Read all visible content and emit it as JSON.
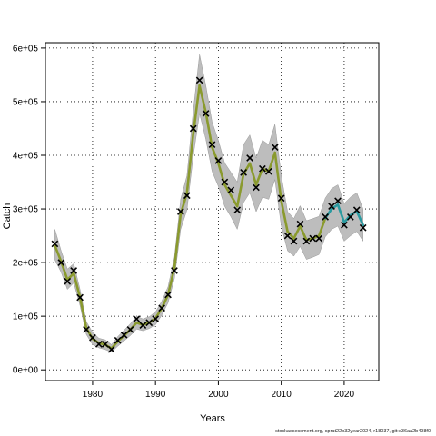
{
  "chart_data": {
    "type": "line",
    "xlabel": "Years",
    "ylabel": "Catch",
    "xlim": [
      1972.5,
      2025.5
    ],
    "ylim": [
      -20000,
      610000
    ],
    "xticks": [
      1980,
      1990,
      2000,
      2010,
      2020
    ],
    "xtick_labels": [
      "1980",
      "1990",
      "2000",
      "2010",
      "2020"
    ],
    "yticks": [
      0,
      100000,
      200000,
      300000,
      400000,
      500000,
      600000
    ],
    "ytick_labels": [
      "0e+00",
      "1e+05",
      "2e+05",
      "3e+05",
      "4e+05",
      "5e+05",
      "6e+05"
    ],
    "grid": true,
    "colors": {
      "band": "#bdbdbd",
      "band_edge": "#999999",
      "line": "#8a9a2e",
      "line_recent": "#2a9aa0",
      "marker": "#000000"
    },
    "x": [
      1974,
      1975,
      1976,
      1977,
      1978,
      1979,
      1980,
      1981,
      1982,
      1983,
      1984,
      1985,
      1986,
      1987,
      1988,
      1989,
      1990,
      1991,
      1992,
      1993,
      1994,
      1995,
      1996,
      1997,
      1998,
      1999,
      2000,
      2001,
      2002,
      2003,
      2004,
      2005,
      2006,
      2007,
      2008,
      2009,
      2010,
      2011,
      2012,
      2013,
      2014,
      2015,
      2016,
      2017,
      2018,
      2019,
      2020,
      2021,
      2022,
      2023
    ],
    "series": [
      {
        "type": "points",
        "marker": "x",
        "values": [
          235000,
          200000,
          165000,
          185000,
          135000,
          75000,
          60000,
          48000,
          48000,
          38000,
          55000,
          65000,
          75000,
          95000,
          83000,
          88000,
          95000,
          115000,
          140000,
          185000,
          295000,
          325000,
          450000,
          540000,
          478000,
          420000,
          390000,
          350000,
          335000,
          298000,
          368000,
          395000,
          340000,
          375000,
          370000,
          415000,
          320000,
          250000,
          240000,
          272000,
          240000,
          245000,
          245000,
          285000,
          305000,
          315000,
          270000,
          285000,
          298000,
          265000
        ]
      },
      {
        "type": "line",
        "values": [
          232000,
          202000,
          168000,
          180000,
          135000,
          78000,
          58000,
          50000,
          47000,
          40000,
          53000,
          64000,
          75000,
          88000,
          84000,
          88000,
          96000,
          115000,
          140000,
          190000,
          290000,
          330000,
          440000,
          530000,
          480000,
          415000,
          385000,
          345000,
          325000,
          305000,
          365000,
          385000,
          345000,
          375000,
          370000,
          405000,
          315000,
          258000,
          245000,
          268000,
          242000,
          245000,
          250000,
          283000,
          300000,
          308000,
          275000,
          288000,
          296000,
          270000
        ]
      },
      {
        "type": "band",
        "name": "",
        "lower": [
          205000,
          182000,
          150000,
          162000,
          120000,
          66000,
          47000,
          41000,
          38000,
          33000,
          44000,
          54000,
          64000,
          76000,
          73000,
          77000,
          84000,
          102000,
          125000,
          170000,
          262000,
          298000,
          398000,
          478000,
          430000,
          370000,
          342000,
          305000,
          285000,
          262000,
          312000,
          330000,
          295000,
          322000,
          318000,
          355000,
          268000,
          222000,
          212000,
          230000,
          206000,
          210000,
          215000,
          248000,
          262000,
          268000,
          240000,
          250000,
          258000,
          240000
        ],
        "upper": [
          262000,
          222000,
          188000,
          198000,
          150000,
          90000,
          70000,
          59000,
          56000,
          47000,
          62000,
          74000,
          86000,
          100000,
          95000,
          99000,
          108000,
          128000,
          155000,
          210000,
          318000,
          362000,
          482000,
          588000,
          530000,
          462000,
          428000,
          386000,
          368000,
          350000,
          420000,
          438000,
          395000,
          428000,
          420000,
          458000,
          362000,
          295000,
          282000,
          306000,
          278000,
          282000,
          286000,
          320000,
          338000,
          345000,
          310000,
          322000,
          330000,
          300000
        ]
      }
    ]
  },
  "footer": "stockassessment.org, sprat22b32year2024, r18037, git:e36aa2b498f0"
}
